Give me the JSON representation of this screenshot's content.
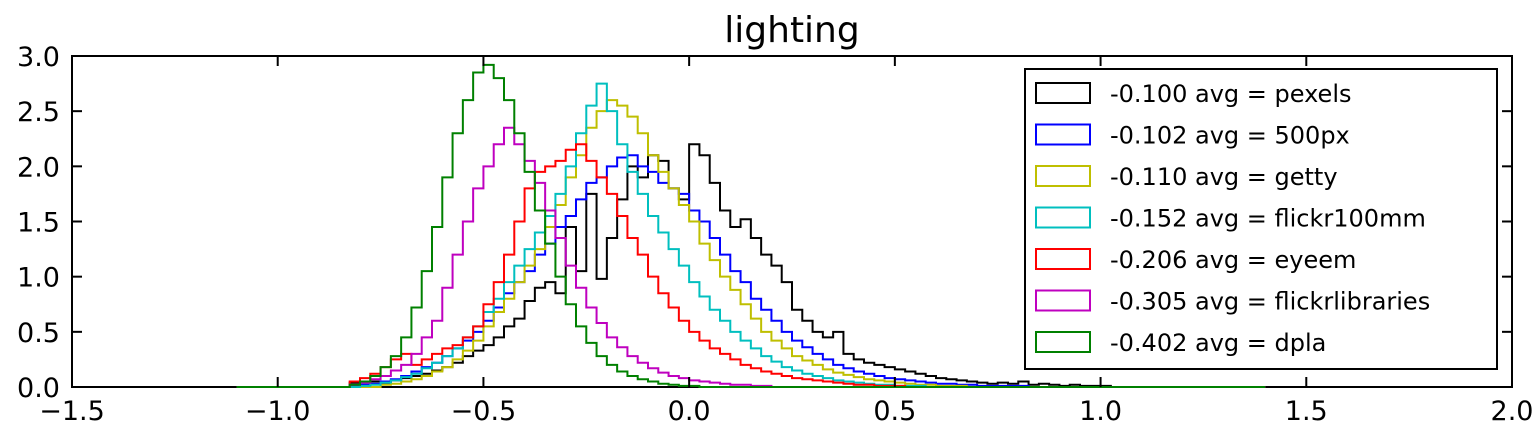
{
  "chart_data": {
    "type": "histogram",
    "title": "lighting",
    "xlabel": "",
    "ylabel": "",
    "xlim": [
      -1.5,
      2.0
    ],
    "ylim": [
      0.0,
      3.0
    ],
    "grid": false,
    "legend_position": "top-right",
    "x_ticks": [
      "−1.5",
      "−1.0",
      "−0.5",
      "0.0",
      "0.5",
      "1.0",
      "1.5",
      "2.0"
    ],
    "y_ticks": [
      "0.0",
      "0.5",
      "1.0",
      "1.5",
      "2.0",
      "2.5",
      "3.0"
    ],
    "bin_start": -1.1,
    "bin_width": 0.025,
    "series": [
      {
        "name": "-0.100 avg = pexels",
        "color": "#000000",
        "values": [
          0,
          0,
          0,
          0,
          0,
          0,
          0,
          0,
          0,
          0,
          0,
          0.04,
          0.02,
          0.05,
          0.03,
          0.06,
          0.08,
          0.1,
          0.12,
          0.15,
          0.18,
          0.22,
          0.28,
          0.33,
          0.38,
          0.45,
          0.55,
          0.62,
          0.78,
          0.9,
          0.95,
          0.85,
          1.45,
          1.05,
          1.75,
          0.98,
          1.35,
          1.7,
          2.0,
          1.9,
          2.1,
          2.05,
          1.8,
          1.7,
          2.2,
          2.1,
          1.85,
          1.6,
          1.45,
          1.52,
          1.35,
          1.2,
          1.1,
          0.95,
          0.7,
          0.6,
          0.5,
          0.45,
          0.5,
          0.3,
          0.25,
          0.22,
          0.2,
          0.18,
          0.16,
          0.14,
          0.12,
          0.1,
          0.08,
          0.07,
          0.06,
          0.05,
          0.04,
          0.03,
          0.04,
          0.03,
          0.05,
          0.02,
          0.03,
          0.02,
          0.01,
          0.02,
          0.01,
          0.01,
          0.01,
          0,
          0,
          0,
          0,
          0,
          0,
          0,
          0,
          0,
          0,
          0,
          0,
          0,
          0,
          0
        ]
      },
      {
        "name": "-0.102 avg = 500px",
        "color": "#0000ff",
        "values": [
          0,
          0,
          0,
          0,
          0,
          0,
          0,
          0,
          0,
          0,
          0,
          0.01,
          0.02,
          0.03,
          0.05,
          0.07,
          0.1,
          0.14,
          0.18,
          0.22,
          0.28,
          0.35,
          0.42,
          0.5,
          0.6,
          0.72,
          0.85,
          0.95,
          1.05,
          1.2,
          1.3,
          1.45,
          1.55,
          1.7,
          1.85,
          1.9,
          2.0,
          2.08,
          2.1,
          2.0,
          1.95,
          1.85,
          1.8,
          1.75,
          1.6,
          1.5,
          1.35,
          1.2,
          1.05,
          0.95,
          0.8,
          0.7,
          0.6,
          0.5,
          0.42,
          0.36,
          0.3,
          0.25,
          0.2,
          0.17,
          0.14,
          0.12,
          0.1,
          0.08,
          0.07,
          0.06,
          0.05,
          0.04,
          0.03,
          0.03,
          0.02,
          0.02,
          0.01,
          0.01,
          0.01,
          0.01,
          0.01,
          0,
          0,
          0,
          0,
          0,
          0,
          0,
          0,
          0,
          0,
          0,
          0,
          0,
          0,
          0,
          0,
          0,
          0,
          0,
          0,
          0,
          0,
          0
        ]
      },
      {
        "name": "-0.110 avg = getty",
        "color": "#bfbf00",
        "values": [
          0,
          0,
          0,
          0,
          0,
          0,
          0,
          0,
          0,
          0,
          0,
          0,
          0,
          0,
          0.02,
          0.03,
          0.05,
          0.07,
          0.1,
          0.14,
          0.18,
          0.25,
          0.33,
          0.42,
          0.55,
          0.68,
          0.8,
          0.95,
          1.1,
          1.25,
          1.45,
          1.65,
          1.9,
          2.1,
          2.35,
          2.5,
          2.6,
          2.55,
          2.45,
          2.3,
          2.1,
          1.95,
          1.8,
          1.65,
          1.5,
          1.3,
          1.15,
          1.0,
          0.88,
          0.75,
          0.62,
          0.5,
          0.42,
          0.35,
          0.28,
          0.24,
          0.2,
          0.16,
          0.13,
          0.11,
          0.09,
          0.07,
          0.06,
          0.05,
          0.04,
          0.03,
          0.02,
          0.02,
          0.01,
          0.01,
          0.01,
          0,
          0,
          0,
          0,
          0,
          0,
          0,
          0,
          0,
          0,
          0,
          0,
          0,
          0,
          0,
          0,
          0,
          0,
          0,
          0,
          0,
          0,
          0,
          0,
          0,
          0,
          0,
          0,
          0
        ]
      },
      {
        "name": "-0.152 avg = flickr100mm",
        "color": "#00bfbf",
        "values": [
          0,
          0,
          0,
          0,
          0,
          0,
          0,
          0,
          0,
          0,
          0,
          0,
          0.01,
          0.02,
          0.04,
          0.06,
          0.09,
          0.12,
          0.17,
          0.22,
          0.28,
          0.35,
          0.45,
          0.55,
          0.68,
          0.8,
          0.95,
          1.1,
          1.25,
          1.4,
          1.55,
          1.75,
          2.0,
          2.3,
          2.55,
          2.75,
          2.5,
          2.2,
          1.95,
          1.75,
          1.55,
          1.4,
          1.25,
          1.1,
          0.95,
          0.82,
          0.7,
          0.6,
          0.5,
          0.42,
          0.35,
          0.28,
          0.23,
          0.18,
          0.15,
          0.12,
          0.1,
          0.08,
          0.06,
          0.05,
          0.04,
          0.03,
          0.02,
          0.02,
          0.01,
          0.01,
          0.01,
          0,
          0,
          0,
          0,
          0,
          0,
          0,
          0,
          0,
          0,
          0,
          0,
          0,
          0,
          0,
          0,
          0,
          0,
          0,
          0,
          0,
          0,
          0,
          0,
          0,
          0,
          0,
          0,
          0,
          0,
          0,
          0,
          0
        ]
      },
      {
        "name": "-0.206 avg = eyeem",
        "color": "#ff0000",
        "values": [
          0,
          0,
          0,
          0,
          0,
          0,
          0,
          0,
          0,
          0,
          0,
          0.05,
          0.08,
          0.12,
          0.18,
          0.25,
          0.3,
          0.2,
          0.25,
          0.3,
          0.35,
          0.38,
          0.45,
          0.55,
          0.75,
          0.95,
          1.2,
          1.5,
          1.8,
          1.95,
          2.0,
          2.05,
          2.15,
          2.2,
          2.05,
          1.9,
          1.75,
          1.55,
          1.35,
          1.2,
          1.0,
          0.85,
          0.72,
          0.6,
          0.5,
          0.42,
          0.35,
          0.3,
          0.25,
          0.2,
          0.17,
          0.14,
          0.12,
          0.1,
          0.08,
          0.07,
          0.06,
          0.05,
          0.04,
          0.03,
          0.02,
          0.02,
          0.01,
          0.01,
          0.01,
          0,
          0,
          0,
          0,
          0,
          0,
          0,
          0,
          0,
          0,
          0,
          0,
          0,
          0,
          0,
          0,
          0,
          0,
          0,
          0,
          0,
          0,
          0,
          0,
          0,
          0,
          0,
          0,
          0,
          0,
          0,
          0,
          0,
          0,
          0
        ]
      },
      {
        "name": "-0.305 avg = flickrlibraries",
        "color": "#bf00bf",
        "values": [
          0,
          0,
          0,
          0,
          0,
          0,
          0,
          0,
          0,
          0,
          0,
          0.02,
          0.04,
          0.07,
          0.1,
          0.15,
          0.2,
          0.3,
          0.45,
          0.6,
          0.9,
          1.2,
          1.5,
          1.8,
          2.0,
          2.2,
          2.35,
          2.2,
          2.05,
          1.85,
          1.6,
          1.35,
          1.1,
          0.9,
          0.72,
          0.58,
          0.45,
          0.36,
          0.28,
          0.22,
          0.17,
          0.13,
          0.1,
          0.08,
          0.06,
          0.05,
          0.04,
          0.03,
          0.02,
          0.02,
          0.01,
          0.01,
          0,
          0,
          0,
          0,
          0,
          0,
          0,
          0,
          0,
          0,
          0,
          0,
          0,
          0,
          0,
          0,
          0,
          0,
          0,
          0,
          0,
          0,
          0,
          0,
          0,
          0,
          0,
          0,
          0,
          0,
          0,
          0,
          0,
          0,
          0,
          0,
          0,
          0,
          0,
          0,
          0,
          0,
          0,
          0,
          0,
          0,
          0,
          0
        ]
      },
      {
        "name": "-0.402 avg = dpla",
        "color": "#008000",
        "values": [
          0,
          0,
          0,
          0,
          0,
          0,
          0,
          0,
          0,
          0,
          0,
          0.02,
          0.05,
          0.1,
          0.18,
          0.28,
          0.45,
          0.72,
          1.05,
          1.45,
          1.9,
          2.3,
          2.6,
          2.85,
          2.92,
          2.8,
          2.6,
          2.3,
          1.95,
          1.6,
          1.3,
          1.0,
          0.75,
          0.55,
          0.4,
          0.28,
          0.2,
          0.14,
          0.1,
          0.07,
          0.05,
          0.03,
          0.02,
          0.01,
          0.01,
          0,
          0,
          0,
          0,
          0,
          0,
          0,
          0,
          0,
          0,
          0,
          0,
          0,
          0,
          0,
          0,
          0,
          0,
          0,
          0,
          0,
          0,
          0,
          0,
          0,
          0,
          0,
          0,
          0,
          0,
          0,
          0,
          0,
          0,
          0,
          0,
          0,
          0,
          0,
          0,
          0,
          0,
          0,
          0,
          0,
          0,
          0,
          0,
          0,
          0,
          0,
          0,
          0,
          0,
          0
        ]
      }
    ]
  }
}
